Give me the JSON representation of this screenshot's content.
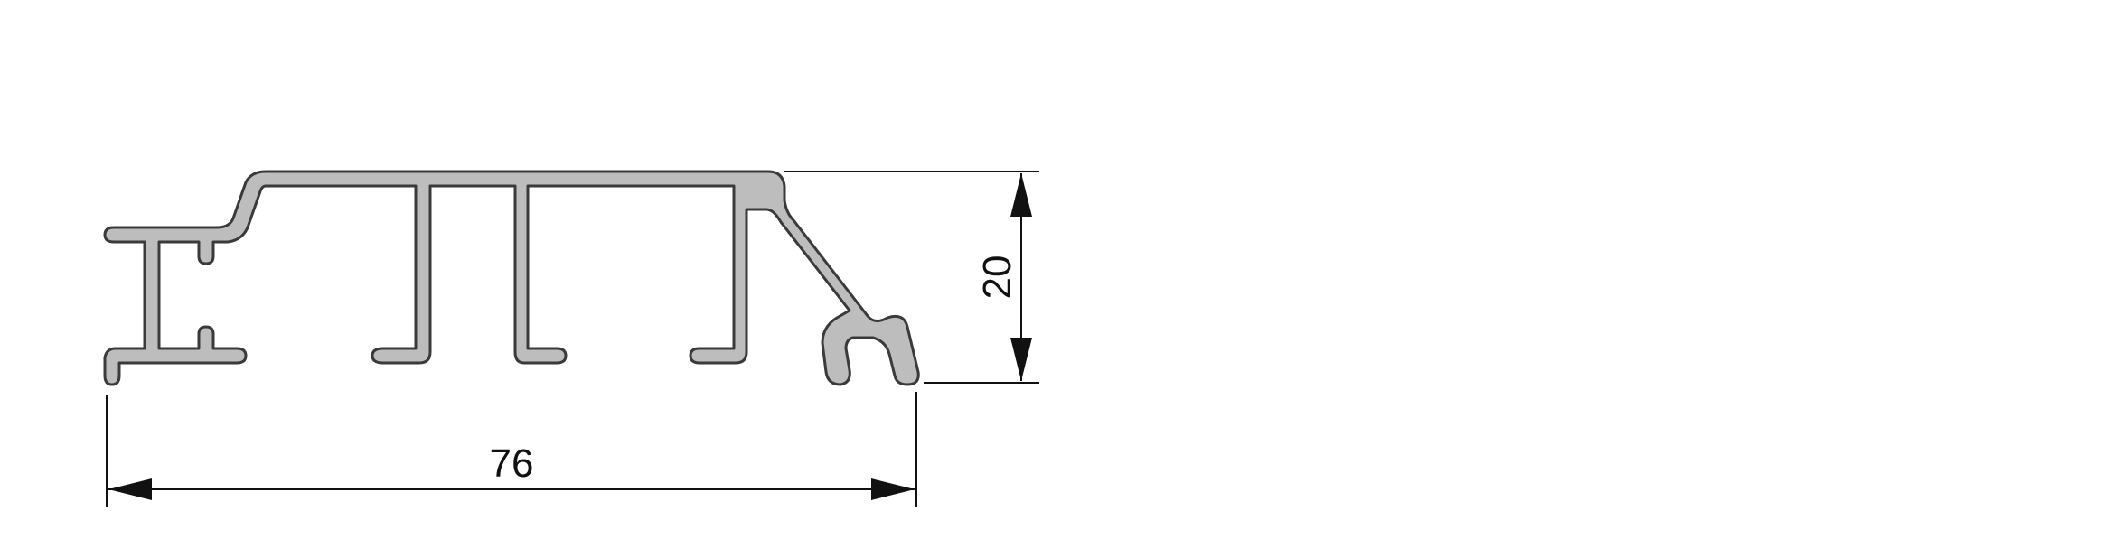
{
  "drawing": {
    "dimensions": {
      "width_value": "76",
      "height_value": "20"
    },
    "colors": {
      "profile_fill": "#bdbdbd",
      "profile_stroke": "#3a3a3a",
      "dimension_line": "#111111"
    }
  }
}
